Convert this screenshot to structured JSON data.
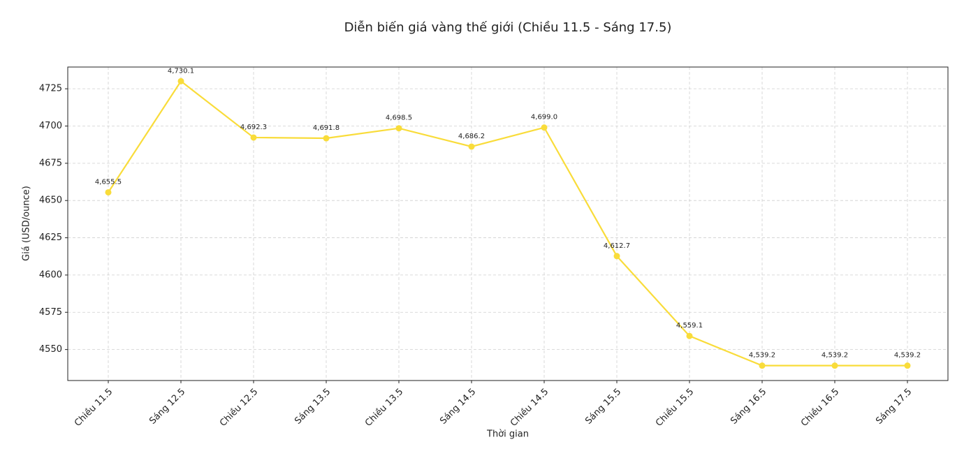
{
  "chart_data": {
    "type": "line",
    "title": "Diễn biến giá vàng thế giới (Chiều 11.5 - Sáng 17.5)",
    "x_label": "Thời gian",
    "y_label": "Giá (USD/ounce)",
    "categories": [
      "Chiều 11.5",
      "Sáng 12.5",
      "Chiều 12.5",
      "Sáng 13.5",
      "Chiều 13.5",
      "Sáng 14.5",
      "Chiều 14.5",
      "Sáng 15.5",
      "Chiều 15.5",
      "Sáng 16.5",
      "Chiều 16.5",
      "Sáng 17.5"
    ],
    "values": [
      4655.5,
      4730.1,
      4692.3,
      4691.8,
      4698.5,
      4686.2,
      4699.0,
      4612.7,
      4559.1,
      4539.2,
      4539.2,
      4539.2
    ],
    "value_labels": [
      "4,655.5",
      "4,730.1",
      "4,692.3",
      "4,691.8",
      "4,698.5",
      "4,686.2",
      "4,699.0",
      "4,612.7",
      "4,559.1",
      "4,539.2",
      "4,539.2",
      "4,539.2"
    ],
    "color": "#f9dc3a",
    "ylim": [
      4529.2,
      4739.6
    ],
    "yticks": [
      4550,
      4575,
      4600,
      4625,
      4650,
      4675,
      4700,
      4725
    ],
    "grid": true
  }
}
